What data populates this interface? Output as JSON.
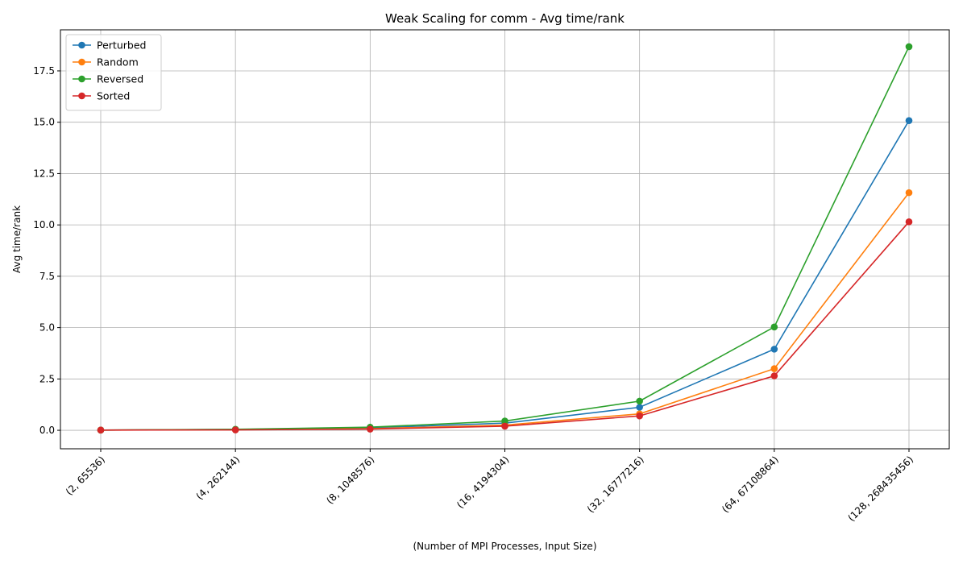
{
  "chart_data": {
    "type": "line",
    "title": "Weak Scaling for comm - Avg time/rank",
    "xlabel": "(Number of MPI Processes, Input Size)",
    "ylabel": "Avg time/rank",
    "categories": [
      "(2, 65536)",
      "(4, 262144)",
      "(8, 1048576)",
      "(16, 4194304)",
      "(32, 16777216)",
      "(64, 67108864)",
      "(128, 268435456)"
    ],
    "ylim": [
      -0.9,
      19.5
    ],
    "yticks": [
      0.0,
      2.5,
      5.0,
      7.5,
      10.0,
      12.5,
      15.0,
      17.5
    ],
    "ytick_labels": [
      "0.0",
      "2.5",
      "5.0",
      "7.5",
      "10.0",
      "12.5",
      "15.0",
      "17.5"
    ],
    "grid": true,
    "legend_position": "top-left",
    "series": [
      {
        "name": "Perturbed",
        "color": "#1f77b4",
        "values": [
          0.01,
          0.04,
          0.12,
          0.35,
          1.12,
          3.95,
          15.08
        ]
      },
      {
        "name": "Random",
        "color": "#ff7f0e",
        "values": [
          0.01,
          0.03,
          0.08,
          0.25,
          0.8,
          3.0,
          11.57
        ]
      },
      {
        "name": "Reversed",
        "color": "#2ca02c",
        "values": [
          0.01,
          0.05,
          0.15,
          0.45,
          1.42,
          5.03,
          18.68
        ]
      },
      {
        "name": "Sorted",
        "color": "#d62728",
        "values": [
          0.01,
          0.02,
          0.06,
          0.2,
          0.7,
          2.65,
          10.15
        ]
      }
    ]
  }
}
